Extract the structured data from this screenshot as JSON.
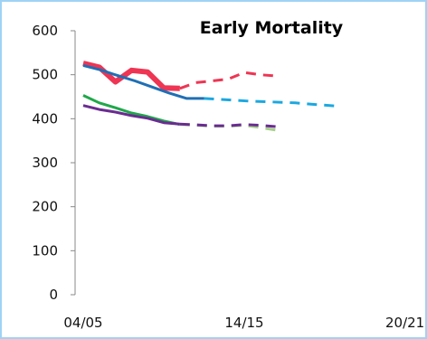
{
  "chart_data": {
    "type": "line",
    "title": "Early Mortality",
    "xlabel": "",
    "ylabel": "",
    "x_tick_labels": [
      "04/05",
      "14/15",
      "20/21"
    ],
    "x_tick_index": [
      0,
      10,
      16
    ],
    "ylim": [
      0,
      600
    ],
    "y_ticks": [
      0,
      100,
      200,
      300,
      400,
      500,
      600
    ],
    "y_tick_labels": [
      "0",
      "100",
      "200",
      "300",
      "400",
      "500",
      "600"
    ],
    "grid": false,
    "legend": "none",
    "series": [
      {
        "color": "#ee3553",
        "width": 6,
        "dash": false,
        "values": [
          526,
          517,
          484,
          510,
          506,
          470,
          469
        ],
        "start": 0
      },
      {
        "color": "#ee3553",
        "width": 3,
        "dash": true,
        "values": [
          469,
          482,
          486,
          490,
          505,
          500,
          497
        ],
        "start": 6
      },
      {
        "color": "#1f6fb5",
        "width": 3,
        "dash": false,
        "values": [
          521,
          511,
          498,
          486,
          472,
          458,
          446,
          446
        ],
        "start": 0,
        "x_end": 7.5
      },
      {
        "color": "#1ba8e0",
        "width": 3,
        "dash": true,
        "values": [
          446,
          443,
          440,
          438,
          436,
          432,
          428
        ],
        "start": 7.5,
        "x_end": 16
      },
      {
        "color": "#1fa84a",
        "width": 3,
        "dash": false,
        "values": [
          453,
          436,
          425,
          413,
          405,
          395,
          387
        ],
        "start": 0
      },
      {
        "color": "#a6cf8a",
        "width": 3,
        "dash": true,
        "values": [
          387,
          385,
          383,
          383,
          385,
          380,
          374
        ],
        "start": 6
      },
      {
        "color": "#6a2c91",
        "width": 3,
        "dash": false,
        "values": [
          430,
          421,
          415,
          407,
          401,
          391,
          388
        ],
        "start": 0
      },
      {
        "color": "#6a2c91",
        "width": 3,
        "dash": true,
        "values": [
          388,
          386,
          384,
          384,
          387,
          385,
          382
        ],
        "start": 6
      }
    ]
  }
}
